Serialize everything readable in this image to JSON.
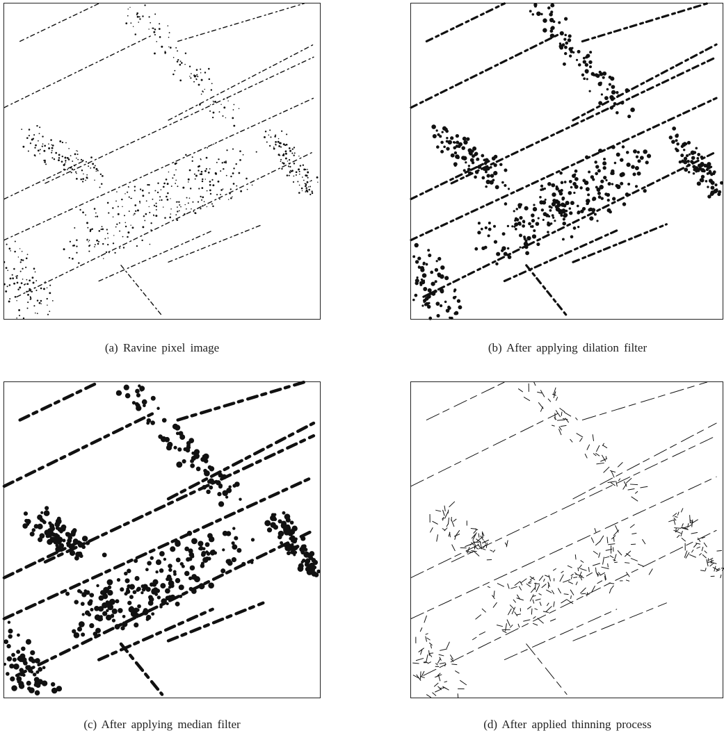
{
  "panels": [
    {
      "caption": "(a) Ravine pixel image"
    },
    {
      "caption": "(b) After applying dilation filter"
    },
    {
      "caption": "(c) After applying median filter"
    },
    {
      "caption": "(d) After applied thinning process"
    }
  ]
}
